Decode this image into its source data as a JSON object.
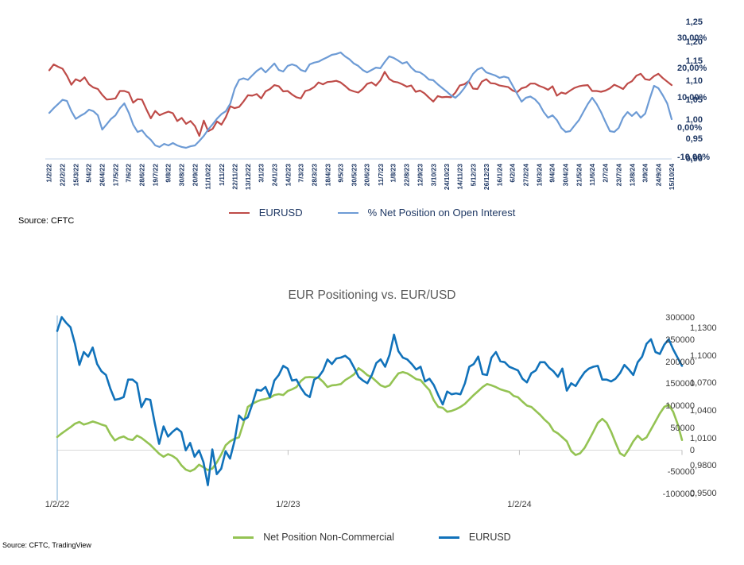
{
  "page": {
    "background": "#FFFFFF"
  },
  "chart_data": [
    {
      "type": "line",
      "title": "",
      "source": "Source: CFTC",
      "grid": "off",
      "legend_position": "bottom-center",
      "weeks_total": 141,
      "x_label_week_step": 3,
      "x_labels": [
        "1/2/22",
        "22/2/22",
        "15/3/22",
        "5/4/22",
        "26/4/22",
        "17/5/22",
        "7/6/22",
        "28/6/22",
        "19/7/22",
        "9/8/22",
        "30/8/22",
        "20/9/22",
        "11/10/22",
        "1/11/22",
        "22/11/22",
        "13/12/22",
        "3/1/23",
        "24/1/23",
        "14/2/23",
        "7/3/23",
        "28/3/23",
        "18/4/23",
        "9/5/23",
        "30/5/23",
        "20/6/23",
        "11/7/23",
        "1/8/23",
        "22/8/23",
        "12/9/23",
        "3/10/23",
        "24/10/23",
        "14/11/23",
        "5/12/23",
        "26/12/23",
        "16/1/24",
        "6/2/24",
        "27/2/24",
        "19/3/24",
        "9/4/24",
        "30/4/24",
        "21/5/24",
        "11/6/24",
        "2/7/24",
        "23/7/24",
        "13/8/24",
        "3/9/24",
        "24/9/24",
        "15/10/24"
      ],
      "left_axis": {
        "range": [
          0.9,
          1.25
        ],
        "ticks": [
          "1,25",
          "1,20",
          "1,15",
          "1,10",
          "1,05",
          "1,00",
          "0,95",
          "0,90"
        ],
        "tick_values": [
          1.25,
          1.2,
          1.15,
          1.1,
          1.05,
          1.0,
          0.95,
          0.9
        ],
        "text_color": "#1F3864"
      },
      "right_axis": {
        "range": [
          -10,
          30
        ],
        "ticks": [
          "30,00%",
          "20,00%",
          "10,00%",
          "0,00%",
          "-10,00%"
        ],
        "tick_values": [
          30,
          20,
          10,
          0,
          -10
        ],
        "text_color": "#1F3864"
      },
      "series": [
        {
          "name": "EURUSD",
          "color": "#BE4B48",
          "axis": "left",
          "values": [
            1.127,
            1.142,
            1.136,
            1.131,
            1.113,
            1.09,
            1.104,
            1.099,
            1.109,
            1.091,
            1.083,
            1.079,
            1.064,
            1.052,
            1.053,
            1.055,
            1.074,
            1.074,
            1.07,
            1.044,
            1.053,
            1.052,
            1.027,
            1.004,
            1.023,
            1.012,
            1.017,
            1.021,
            1.017,
            0.997,
            1.005,
            0.99,
            0.997,
            0.984,
            0.959,
            0.998,
            0.971,
            0.977,
            0.996,
            0.988,
            1.007,
            1.035,
            1.03,
            1.033,
            1.047,
            1.063,
            1.062,
            1.066,
            1.055,
            1.073,
            1.079,
            1.089,
            1.086,
            1.073,
            1.074,
            1.065,
            1.058,
            1.055,
            1.074,
            1.077,
            1.084,
            1.096,
            1.091,
            1.097,
            1.098,
            1.1,
            1.096,
            1.087,
            1.077,
            1.073,
            1.07,
            1.079,
            1.092,
            1.096,
            1.088,
            1.101,
            1.123,
            1.105,
            1.098,
            1.096,
            1.091,
            1.085,
            1.088,
            1.072,
            1.075,
            1.068,
            1.057,
            1.047,
            1.061,
            1.058,
            1.059,
            1.058,
            1.07,
            1.088,
            1.091,
            1.099,
            1.08,
            1.079,
            1.098,
            1.104,
            1.094,
            1.093,
            1.088,
            1.086,
            1.084,
            1.075,
            1.071,
            1.081,
            1.084,
            1.093,
            1.093,
            1.087,
            1.083,
            1.077,
            1.086,
            1.062,
            1.07,
            1.067,
            1.075,
            1.082,
            1.086,
            1.088,
            1.089,
            1.074,
            1.074,
            1.072,
            1.075,
            1.081,
            1.09,
            1.085,
            1.079,
            1.093,
            1.099,
            1.113,
            1.118,
            1.104,
            1.102,
            1.112,
            1.118,
            1.107,
            1.098,
            1.089
          ]
        },
        {
          "name": "% Net Position on Open Interest",
          "color": "#6D9BD5",
          "axis": "right",
          "values": [
            4.9,
            6.5,
            7.9,
            9.3,
            8.9,
            5.5,
            2.9,
            3.9,
            4.7,
            6.0,
            5.5,
            4.1,
            -0.7,
            1.1,
            2.9,
            4.1,
            6.5,
            8.1,
            5.0,
            1.0,
            -1.5,
            -0.9,
            -2.8,
            -4.1,
            -6.0,
            -6.5,
            -5.5,
            -6.0,
            -5.2,
            -6.0,
            -6.5,
            -6.8,
            -6.3,
            -6.0,
            -4.5,
            -2.8,
            -0.7,
            1.1,
            3.0,
            4.5,
            5.5,
            8.0,
            13.0,
            16.0,
            16.5,
            16.0,
            17.5,
            19.0,
            20.0,
            18.5,
            20.0,
            21.5,
            19.3,
            18.8,
            20.7,
            21.2,
            20.7,
            19.3,
            18.8,
            21.2,
            21.8,
            22.1,
            22.9,
            23.6,
            24.4,
            24.7,
            25.2,
            23.9,
            22.9,
            21.5,
            20.7,
            19.3,
            18.5,
            19.3,
            20.1,
            19.9,
            22.0,
            23.9,
            23.4,
            22.5,
            21.5,
            22.0,
            20.1,
            18.8,
            18.5,
            17.5,
            16.1,
            15.9,
            14.5,
            13.3,
            12.1,
            10.8,
            10.0,
            11.3,
            13.2,
            15.5,
            18.0,
            19.5,
            20.1,
            18.5,
            18.0,
            17.5,
            16.7,
            17.1,
            16.7,
            14.0,
            11.3,
            8.7,
            10.0,
            10.4,
            9.5,
            7.9,
            5.2,
            3.3,
            4.1,
            2.5,
            -0.1,
            -1.5,
            -1.2,
            0.7,
            2.5,
            5.2,
            7.9,
            10.0,
            7.9,
            5.2,
            1.9,
            -1.2,
            -1.5,
            -0.1,
            3.3,
            5.2,
            3.9,
            5.2,
            3.3,
            4.7,
            9.5,
            14.0,
            13.2,
            10.8,
            8.1,
            2.8
          ]
        }
      ]
    },
    {
      "type": "line",
      "title": "EUR Positioning vs. EUR/USD",
      "source": "Source: CFTC, TradingView",
      "grid": "zero-line-only",
      "legend_position": "bottom-center",
      "weeks_total": 141,
      "x_ticks": [
        {
          "label": "1/2/22",
          "week": 0
        },
        {
          "label": "1/2/23",
          "week": 52.1
        },
        {
          "label": "1/2/24",
          "week": 104.3
        }
      ],
      "left_axis": {
        "range": [
          -100000,
          300000
        ],
        "ticks": [
          "300000",
          "250000",
          "200000",
          "150000",
          "100000",
          "50000",
          "0",
          "-50000",
          "-100000"
        ],
        "tick_values": [
          300000,
          250000,
          200000,
          150000,
          100000,
          50000,
          0,
          -50000,
          -100000
        ],
        "text_color": "#3B3B3B"
      },
      "right_axis": {
        "range": [
          0.95,
          1.13
        ],
        "ticks": [
          "1,1300",
          "1,1000",
          "1,0700",
          "1,0400",
          "1,0100",
          "0,9800",
          "0,9500"
        ],
        "tick_values": [
          1.13,
          1.1,
          1.07,
          1.04,
          1.01,
          0.98,
          0.95
        ],
        "text_color": "#3B3B3B"
      },
      "series": [
        {
          "name": "Net Position Non-Commercial",
          "color": "#94C353",
          "axis": "left",
          "values": [
            30000,
            38000,
            45000,
            52000,
            60000,
            64000,
            58000,
            61000,
            65000,
            62000,
            58000,
            55000,
            36000,
            22000,
            28000,
            31000,
            25000,
            23000,
            33000,
            28000,
            20000,
            12000,
            2000,
            -8000,
            -15000,
            -9000,
            -13000,
            -20000,
            -34000,
            -44000,
            -48000,
            -43000,
            -33000,
            -39000,
            -45000,
            -42000,
            -28000,
            -10000,
            11000,
            20000,
            26000,
            29000,
            60000,
            98000,
            105000,
            110000,
            114000,
            116000,
            119000,
            125000,
            127000,
            125000,
            134000,
            138000,
            143000,
            157000,
            165000,
            166000,
            165000,
            164000,
            155000,
            143000,
            147000,
            148000,
            150000,
            159000,
            165000,
            172000,
            186000,
            179000,
            170000,
            165000,
            156000,
            147000,
            143000,
            147000,
            161000,
            174000,
            177000,
            174000,
            168000,
            161000,
            159000,
            147000,
            136000,
            113000,
            98000,
            96000,
            87000,
            89000,
            93000,
            98000,
            105000,
            115000,
            125000,
            134000,
            143000,
            150000,
            147000,
            143000,
            138000,
            135000,
            132000,
            123000,
            120000,
            110000,
            101000,
            98000,
            89000,
            80000,
            69000,
            60000,
            44000,
            38000,
            29000,
            20000,
            -2000,
            -11000,
            -7000,
            5000,
            23000,
            42000,
            62000,
            71000,
            62000,
            42000,
            17000,
            -7000,
            -13000,
            2000,
            20000,
            33000,
            23000,
            29000,
            47000,
            65000,
            83000,
            98000,
            103000,
            87000,
            60000,
            23000
          ]
        },
        {
          "name": "EURUSD",
          "color": "#1172BA",
          "axis": "right",
          "values": [
            1.127,
            1.142,
            1.136,
            1.131,
            1.113,
            1.09,
            1.104,
            1.099,
            1.109,
            1.091,
            1.083,
            1.079,
            1.064,
            1.052,
            1.053,
            1.055,
            1.074,
            1.074,
            1.07,
            1.044,
            1.053,
            1.052,
            1.027,
            1.004,
            1.023,
            1.012,
            1.017,
            1.021,
            1.017,
            0.997,
            1.005,
            0.99,
            0.997,
            0.984,
            0.959,
            0.998,
            0.971,
            0.977,
            0.996,
            0.988,
            1.007,
            1.035,
            1.03,
            1.033,
            1.047,
            1.063,
            1.062,
            1.066,
            1.055,
            1.073,
            1.079,
            1.089,
            1.086,
            1.073,
            1.074,
            1.065,
            1.058,
            1.055,
            1.074,
            1.077,
            1.084,
            1.096,
            1.091,
            1.097,
            1.098,
            1.1,
            1.096,
            1.087,
            1.077,
            1.073,
            1.07,
            1.079,
            1.092,
            1.096,
            1.088,
            1.101,
            1.123,
            1.105,
            1.098,
            1.096,
            1.091,
            1.085,
            1.088,
            1.072,
            1.075,
            1.068,
            1.057,
            1.047,
            1.061,
            1.058,
            1.059,
            1.058,
            1.07,
            1.088,
            1.091,
            1.099,
            1.08,
            1.079,
            1.098,
            1.104,
            1.094,
            1.093,
            1.088,
            1.086,
            1.084,
            1.075,
            1.071,
            1.081,
            1.084,
            1.093,
            1.093,
            1.087,
            1.083,
            1.077,
            1.086,
            1.062,
            1.07,
            1.067,
            1.075,
            1.082,
            1.086,
            1.088,
            1.089,
            1.074,
            1.074,
            1.072,
            1.075,
            1.081,
            1.09,
            1.085,
            1.079,
            1.093,
            1.099,
            1.113,
            1.118,
            1.104,
            1.102,
            1.112,
            1.118,
            1.107,
            1.098,
            1.089
          ]
        }
      ]
    }
  ]
}
